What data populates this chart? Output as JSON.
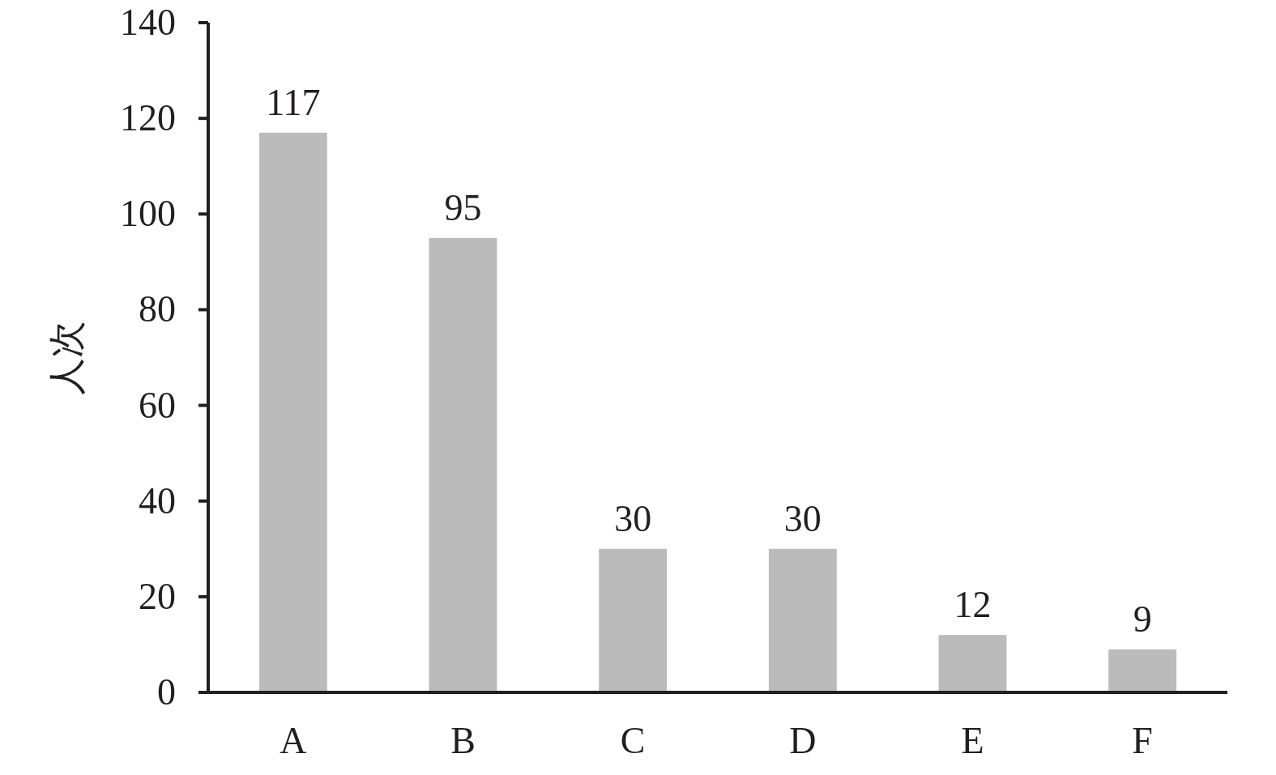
{
  "chart_data": {
    "type": "bar",
    "ylabel": "人次",
    "categories": [
      "A",
      "B",
      "C",
      "D",
      "E",
      "F"
    ],
    "values": [
      117,
      95,
      30,
      30,
      12,
      9
    ],
    "color": "#bbbbbb",
    "ylim": [
      0,
      140
    ],
    "yticks": [
      0,
      20,
      40,
      60,
      80,
      100,
      120,
      140
    ],
    "data_labels": true,
    "grid": false
  }
}
